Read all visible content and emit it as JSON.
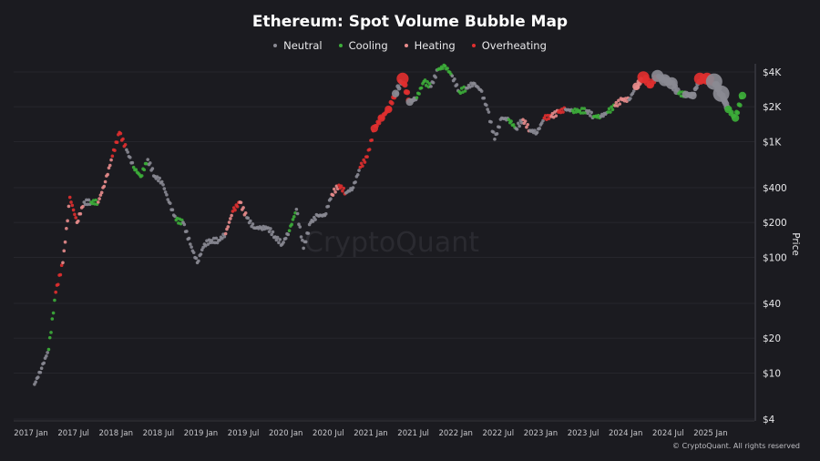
{
  "chart_data": {
    "type": "scatter",
    "title": "Ethereum: Spot Volume Bubble Map",
    "ylabel": "Price",
    "xlabel": "",
    "y_scale": "log",
    "ylim": [
      4,
      4600
    ],
    "y_ticks": [
      "$4K",
      "$2K",
      "$1K",
      "$400",
      "$200",
      "$100",
      "$40",
      "$20",
      "$10",
      "$4"
    ],
    "y_tick_values": [
      4000,
      2000,
      1000,
      400,
      200,
      100,
      40,
      20,
      10,
      4
    ],
    "x_ticks": [
      "2017 Jan",
      "2017 Jul",
      "2018 Jan",
      "2018 Jul",
      "2019 Jan",
      "2019 Jul",
      "2020 Jan",
      "2020 Jul",
      "2021 Jan",
      "2021 Jul",
      "2022 Jan",
      "2022 Jul",
      "2023 Jan",
      "2023 Jul",
      "2024 Jan",
      "2024 Jul",
      "2025 Jan"
    ],
    "grid": true,
    "legend_placement": "top-center",
    "categories": [
      {
        "name": "Neutral",
        "color": "#8a8a93"
      },
      {
        "name": "Cooling",
        "color": "#3dae3a"
      },
      {
        "name": "Heating",
        "color": "#e98c8c"
      },
      {
        "name": "Overheating",
        "color": "#e02f2f"
      }
    ],
    "points": [
      [
        "2017-01",
        8,
        "Neutral",
        1
      ],
      [
        "2017-02",
        11,
        "Neutral",
        1
      ],
      [
        "2017-03",
        16,
        "Cooling",
        1
      ],
      [
        "2017-04",
        50,
        "Overheating",
        1
      ],
      [
        "2017-05",
        90,
        "Heating",
        1
      ],
      [
        "2017-06",
        330,
        "Overheating",
        1
      ],
      [
        "2017-07",
        200,
        "Heating",
        1
      ],
      [
        "2017-08",
        300,
        "Neutral",
        1
      ],
      [
        "2017-09",
        300,
        "Cooling",
        1
      ],
      [
        "2017-10",
        300,
        "Heating",
        1
      ],
      [
        "2017-11",
        450,
        "Heating",
        1
      ],
      [
        "2017-12",
        750,
        "Overheating",
        1
      ],
      [
        "2018-01",
        1200,
        "Overheating",
        1
      ],
      [
        "2018-02",
        850,
        "Neutral",
        1
      ],
      [
        "2018-03",
        600,
        "Cooling",
        1
      ],
      [
        "2018-04",
        500,
        "Cooling",
        1
      ],
      [
        "2018-05",
        700,
        "Neutral",
        1
      ],
      [
        "2018-06",
        500,
        "Neutral",
        1
      ],
      [
        "2018-07",
        450,
        "Neutral",
        1
      ],
      [
        "2018-08",
        300,
        "Neutral",
        1
      ],
      [
        "2018-09",
        210,
        "Cooling",
        1
      ],
      [
        "2018-10",
        200,
        "Neutral",
        1
      ],
      [
        "2018-11",
        130,
        "Neutral",
        1
      ],
      [
        "2018-12",
        90,
        "Neutral",
        1
      ],
      [
        "2019-01",
        130,
        "Neutral",
        1
      ],
      [
        "2019-02",
        140,
        "Neutral",
        1
      ],
      [
        "2019-03",
        140,
        "Neutral",
        1
      ],
      [
        "2019-04",
        160,
        "Heating",
        1
      ],
      [
        "2019-05",
        250,
        "Overheating",
        1
      ],
      [
        "2019-06",
        300,
        "Heating",
        1
      ],
      [
        "2019-07",
        220,
        "Neutral",
        1
      ],
      [
        "2019-08",
        180,
        "Neutral",
        1
      ],
      [
        "2019-09",
        180,
        "Neutral",
        1
      ],
      [
        "2019-10",
        180,
        "Neutral",
        1
      ],
      [
        "2019-11",
        150,
        "Neutral",
        1
      ],
      [
        "2019-12",
        130,
        "Neutral",
        1
      ],
      [
        "2020-01",
        170,
        "Cooling",
        1
      ],
      [
        "2020-02",
        260,
        "Neutral",
        1
      ],
      [
        "2020-03",
        120,
        "Neutral",
        1
      ],
      [
        "2020-04",
        200,
        "Neutral",
        1
      ],
      [
        "2020-05",
        230,
        "Neutral",
        1
      ],
      [
        "2020-06",
        230,
        "Neutral",
        1
      ],
      [
        "2020-07",
        350,
        "Heating",
        1
      ],
      [
        "2020-08",
        420,
        "Overheating",
        1
      ],
      [
        "2020-09",
        360,
        "Neutral",
        1
      ],
      [
        "2020-10",
        400,
        "Neutral",
        1
      ],
      [
        "2020-11",
        600,
        "Overheating",
        1
      ],
      [
        "2020-12",
        740,
        "Overheating",
        1
      ],
      [
        "2021-01",
        1300,
        "Overheating",
        2
      ],
      [
        "2021-02",
        1600,
        "Overheating",
        2
      ],
      [
        "2021-03",
        1900,
        "Overheating",
        2
      ],
      [
        "2021-04",
        2600,
        "Neutral",
        2
      ],
      [
        "2021-05",
        3500,
        "Overheating",
        3
      ],
      [
        "2021-06",
        2200,
        "Neutral",
        2
      ],
      [
        "2021-07",
        2400,
        "Cooling",
        1
      ],
      [
        "2021-08",
        3300,
        "Cooling",
        1
      ],
      [
        "2021-09",
        3000,
        "Neutral",
        1
      ],
      [
        "2021-10",
        4200,
        "Cooling",
        1
      ],
      [
        "2021-11",
        4500,
        "Cooling",
        1
      ],
      [
        "2021-12",
        3700,
        "Neutral",
        1
      ],
      [
        "2022-01",
        2700,
        "Cooling",
        1
      ],
      [
        "2022-02",
        2900,
        "Neutral",
        1
      ],
      [
        "2022-03",
        3200,
        "Neutral",
        1
      ],
      [
        "2022-04",
        2800,
        "Neutral",
        1
      ],
      [
        "2022-05",
        1900,
        "Neutral",
        1
      ],
      [
        "2022-06",
        1050,
        "Neutral",
        1
      ],
      [
        "2022-07",
        1600,
        "Neutral",
        1
      ],
      [
        "2022-08",
        1550,
        "Cooling",
        1
      ],
      [
        "2022-09",
        1300,
        "Neutral",
        1
      ],
      [
        "2022-10",
        1550,
        "Heating",
        1
      ],
      [
        "2022-11",
        1250,
        "Neutral",
        1
      ],
      [
        "2022-12",
        1200,
        "Neutral",
        1
      ],
      [
        "2023-01",
        1600,
        "Overheating",
        1
      ],
      [
        "2023-02",
        1650,
        "Heating",
        1
      ],
      [
        "2023-03",
        1800,
        "Overheating",
        1
      ],
      [
        "2023-04",
        1900,
        "Neutral",
        1
      ],
      [
        "2023-05",
        1850,
        "Cooling",
        1
      ],
      [
        "2023-06",
        1850,
        "Cooling",
        1
      ],
      [
        "2023-07",
        1850,
        "Neutral",
        1
      ],
      [
        "2023-08",
        1650,
        "Cooling",
        1
      ],
      [
        "2023-09",
        1650,
        "Neutral",
        1
      ],
      [
        "2023-10",
        1800,
        "Cooling",
        1
      ],
      [
        "2023-11",
        2050,
        "Heating",
        1
      ],
      [
        "2023-12",
        2300,
        "Heating",
        1
      ],
      [
        "2024-01",
        2300,
        "Neutral",
        1
      ],
      [
        "2024-02",
        3000,
        "Heating",
        2
      ],
      [
        "2024-03",
        3600,
        "Overheating",
        3
      ],
      [
        "2024-04",
        3100,
        "Overheating",
        2
      ],
      [
        "2024-05",
        3700,
        "Neutral",
        3
      ],
      [
        "2024-06",
        3400,
        "Neutral",
        3
      ],
      [
        "2024-07",
        3200,
        "Neutral",
        3
      ],
      [
        "2024-08",
        2600,
        "Cooling",
        1
      ],
      [
        "2024-09",
        2550,
        "Neutral",
        2
      ],
      [
        "2024-10",
        2500,
        "Neutral",
        2
      ],
      [
        "2024-11",
        3500,
        "Overheating",
        3
      ],
      [
        "2024-12",
        3500,
        "Overheating",
        3
      ],
      [
        "2025-01",
        3300,
        "Neutral",
        4
      ],
      [
        "2025-02",
        2600,
        "Neutral",
        4
      ],
      [
        "2025-03",
        1900,
        "Cooling",
        2
      ],
      [
        "2025-04",
        1600,
        "Cooling",
        2
      ],
      [
        "2025-05",
        2500,
        "Cooling",
        2
      ]
    ]
  },
  "watermark": "CryptoQuant",
  "footer": "© CryptoQuant. All rights reserved"
}
